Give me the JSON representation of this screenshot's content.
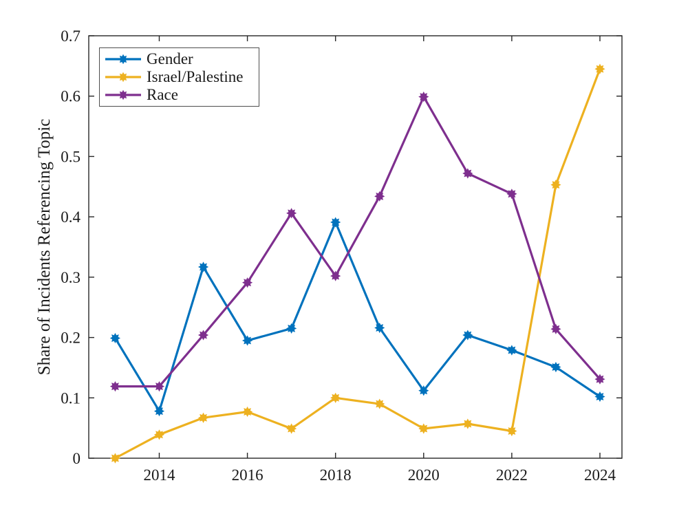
{
  "chart_data": {
    "type": "line",
    "title": "",
    "xlabel": "",
    "ylabel": "Share of Incidents Referencing Topic",
    "x": [
      2013,
      2014,
      2015,
      2016,
      2017,
      2018,
      2019,
      2020,
      2021,
      2022,
      2023,
      2024
    ],
    "series": [
      {
        "name": "Gender",
        "color": "#0072BD",
        "values": [
          0.199,
          0.078,
          0.317,
          0.195,
          0.215,
          0.391,
          0.216,
          0.112,
          0.204,
          0.179,
          0.151,
          0.102
        ]
      },
      {
        "name": "Israel/Palestine",
        "color": "#EDB120",
        "values": [
          0.0,
          0.039,
          0.067,
          0.077,
          0.049,
          0.1,
          0.09,
          0.049,
          0.057,
          0.045,
          0.453,
          0.645
        ]
      },
      {
        "name": "Race",
        "color": "#7E2F8E",
        "values": [
          0.119,
          0.119,
          0.204,
          0.291,
          0.406,
          0.302,
          0.434,
          0.599,
          0.472,
          0.438,
          0.214,
          0.131
        ]
      }
    ],
    "xlim": [
      2012.4,
      2024.5
    ],
    "ylim": [
      0,
      0.7
    ],
    "xticks": [
      2014,
      2016,
      2018,
      2020,
      2022,
      2024
    ],
    "xtick_labels": [
      "2014",
      "2016",
      "2018",
      "2020",
      "2022",
      "2024"
    ],
    "yticks": [
      0,
      0.1,
      0.2,
      0.3,
      0.4,
      0.5,
      0.6,
      0.7
    ],
    "ytick_labels": [
      "0",
      "0.1",
      "0.2",
      "0.3",
      "0.4",
      "0.5",
      "0.6",
      "0.7"
    ],
    "grid": false,
    "legend_position": "top-left",
    "marker": "star",
    "line_style": "solid"
  }
}
